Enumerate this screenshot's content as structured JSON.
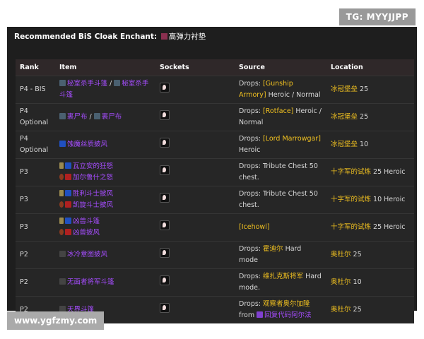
{
  "watermarks": {
    "top": "TG: MYYJJPP",
    "bottom": "www.ygfzmy.com"
  },
  "title": {
    "label": "Recommended BiS Cloak Enchant:",
    "enchant": "高弹力衬垫"
  },
  "headers": [
    "Rank",
    "Item",
    "Sockets",
    "Source",
    "Location"
  ],
  "rows": [
    {
      "rank": "P4 - BIS",
      "items": [
        {
          "name": "秘室杀手斗篷",
          "icon": "cloak"
        },
        {
          "sep": " / "
        },
        {
          "name": "秘室杀手斗篷",
          "icon": "cloak"
        }
      ],
      "source": [
        {
          "t": "Drops: "
        },
        {
          "t": "[Gunship Armory]",
          "gold": true
        },
        {
          "t": " Heroic / Normal"
        }
      ],
      "location": "冰冠堡垒",
      "loc_suffix": " 25"
    },
    {
      "rank": "P4 Optional",
      "items": [
        {
          "name": "裹尸布",
          "icon": "cloak"
        },
        {
          "sep": " / "
        },
        {
          "name": "裹尸布",
          "icon": "cloak"
        }
      ],
      "source": [
        {
          "t": "Drops: "
        },
        {
          "t": "[Rotface]",
          "gold": true
        },
        {
          "t": " Heroic / Normal"
        }
      ],
      "location": "冰冠堡垒",
      "loc_suffix": " 25"
    },
    {
      "rank": "P4 Optional",
      "items": [
        {
          "name": "蚀魔丝质披风",
          "icon": "blue"
        }
      ],
      "source": [
        {
          "t": "Drops: "
        },
        {
          "t": "[Lord Marrowgar]",
          "gold": true
        },
        {
          "t": " Heroic"
        }
      ],
      "location": "冰冠堡垒",
      "loc_suffix": " 10"
    },
    {
      "rank": "P3",
      "items": [
        {
          "name": "瓦立安的狂怒",
          "icon": "blue",
          "faction": "alliance",
          "br": true
        },
        {
          "name": "加尔鲁什之怒",
          "icon": "red",
          "faction": "horde"
        }
      ],
      "source": [
        {
          "t": "Drops: Tribute Chest 50 chest."
        }
      ],
      "location": "十字军的试炼",
      "loc_suffix": " 25 Heroic"
    },
    {
      "rank": "P3",
      "items": [
        {
          "name": "胜利斗士披风",
          "icon": "blue",
          "faction": "alliance",
          "br": true
        },
        {
          "name": "凯旋斗士披风",
          "icon": "red",
          "faction": "horde"
        }
      ],
      "source": [
        {
          "t": "Drops: Tribute Chest 50 chest."
        }
      ],
      "location": "十字军的试炼",
      "loc_suffix": " 10 Heroic"
    },
    {
      "rank": "P3",
      "items": [
        {
          "name": "凶兽斗篷",
          "icon": "blue",
          "faction": "alliance",
          "br": true
        },
        {
          "name": "凶兽披风",
          "icon": "red",
          "faction": "horde"
        }
      ],
      "source": [
        {
          "t": "[Icehowl]",
          "gold": true
        }
      ],
      "location": "十字军的试炼",
      "loc_suffix": " 25 Heroic"
    },
    {
      "rank": "P2",
      "items": [
        {
          "name": "冰冷意图披风",
          "icon": "dark"
        }
      ],
      "source": [
        {
          "t": "Drops: "
        },
        {
          "t": "霍迪尔",
          "gold": true
        },
        {
          "t": " Hard mode"
        }
      ],
      "location": "奥杜尔",
      "loc_suffix": " 25"
    },
    {
      "rank": "P2",
      "items": [
        {
          "name": "无面者将军斗篷",
          "icon": "dark"
        }
      ],
      "source": [
        {
          "t": "Drops: "
        },
        {
          "t": "维扎克斯将军",
          "gold": true
        },
        {
          "t": " Hard mode."
        }
      ],
      "location": "奥杜尔",
      "loc_suffix": " 10"
    },
    {
      "rank": "P2",
      "items": [
        {
          "name": "天界斗篷",
          "icon": "dark"
        }
      ],
      "source": [
        {
          "t": "Drops: "
        },
        {
          "t": "观察者奥尔加隆",
          "gold": true
        },
        {
          "t": " from "
        },
        {
          "t": "回复代码阿尔法",
          "purple": true
        }
      ],
      "location": "奥杜尔",
      "loc_suffix": " 25"
    }
  ],
  "colors": {
    "item": "#a64dff",
    "highlight": "#f0c020",
    "panel": "#1e1e1e"
  }
}
